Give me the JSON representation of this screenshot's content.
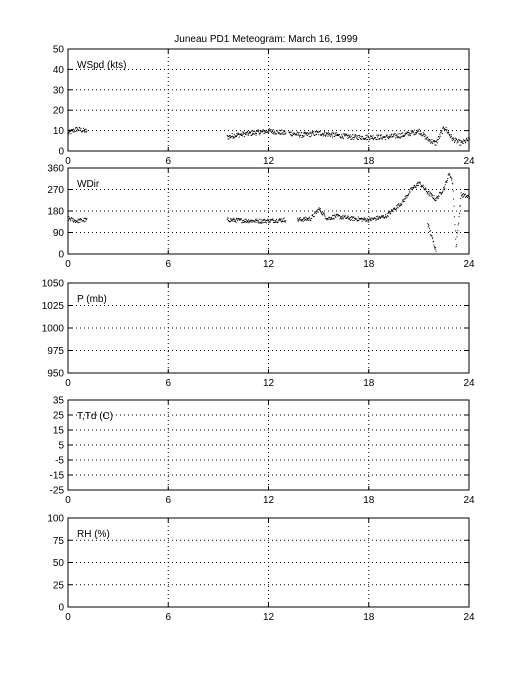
{
  "figure": {
    "title": "Juneau PD1 Meteogram:      March 16, 1999"
  },
  "chart_data": [
    {
      "type": "scatter",
      "label": "WSpd (kts)",
      "xlim": [
        0,
        24
      ],
      "ylim": [
        0,
        50
      ],
      "xticks": [
        0,
        6,
        12,
        18,
        24
      ],
      "yticks": [
        0,
        10,
        20,
        30,
        40,
        50
      ],
      "grid": true,
      "marker_color": "#000000",
      "segments": [
        {
          "x": [
            0,
            0.5,
            1.0,
            1.1
          ],
          "y": [
            9,
            11,
            10,
            10
          ]
        },
        {
          "x": [
            9.5,
            10,
            11,
            12,
            13
          ],
          "y": [
            7,
            8,
            9,
            10,
            9
          ]
        },
        {
          "x": [
            13.2,
            14,
            15,
            16,
            17,
            18,
            19,
            20,
            21,
            21.5,
            22,
            22.5,
            23,
            23.5,
            24
          ],
          "y": [
            9,
            8,
            9,
            8,
            7,
            7,
            7,
            8,
            10,
            6,
            4,
            12,
            6,
            4,
            6
          ]
        }
      ]
    },
    {
      "type": "scatter",
      "label": "WDir",
      "xlim": [
        0,
        24
      ],
      "ylim": [
        0,
        360
      ],
      "xticks": [
        0,
        6,
        12,
        18,
        24
      ],
      "yticks": [
        0,
        90,
        180,
        270,
        360
      ],
      "grid": true,
      "marker_color": "#000000",
      "segments": [
        {
          "x": [
            0,
            0.5,
            1.1
          ],
          "y": [
            150,
            140,
            145
          ]
        },
        {
          "x": [
            9.5,
            10.5,
            11.5,
            12.5,
            13
          ],
          "y": [
            145,
            142,
            140,
            143,
            145
          ]
        },
        {
          "x": [
            13.7,
            14.5,
            15,
            15.5,
            16,
            17,
            18,
            19,
            20,
            20.5,
            21,
            21.5,
            22,
            22.5,
            22.8,
            23,
            23.2,
            23.5,
            24
          ],
          "y": [
            145,
            150,
            190,
            150,
            160,
            150,
            145,
            160,
            220,
            270,
            300,
            260,
            230,
            280,
            340,
            300,
            30,
            250,
            240
          ]
        },
        {
          "x": [
            21.5,
            21.8,
            22.0
          ],
          "y": [
            130,
            60,
            20
          ]
        }
      ]
    },
    {
      "type": "scatter",
      "label": "P (mb)",
      "xlim": [
        0,
        24
      ],
      "ylim": [
        950,
        1050
      ],
      "xticks": [
        0,
        6,
        12,
        18,
        24
      ],
      "yticks": [
        950,
        975,
        1000,
        1025,
        1050
      ],
      "grid": true,
      "segments": []
    },
    {
      "type": "scatter",
      "label": "T,Td (C)",
      "xlim": [
        0,
        24
      ],
      "ylim": [
        -25,
        35
      ],
      "xticks": [
        0,
        6,
        12,
        18,
        24
      ],
      "yticks": [
        -25,
        -15,
        -5,
        5,
        15,
        25,
        35
      ],
      "grid": true,
      "segments": []
    },
    {
      "type": "scatter",
      "label": "RH (%)",
      "xlim": [
        0,
        24
      ],
      "ylim": [
        0,
        100
      ],
      "xticks": [
        0,
        6,
        12,
        18,
        24
      ],
      "yticks": [
        0,
        25,
        50,
        75,
        100
      ],
      "grid": true,
      "segments": []
    }
  ]
}
